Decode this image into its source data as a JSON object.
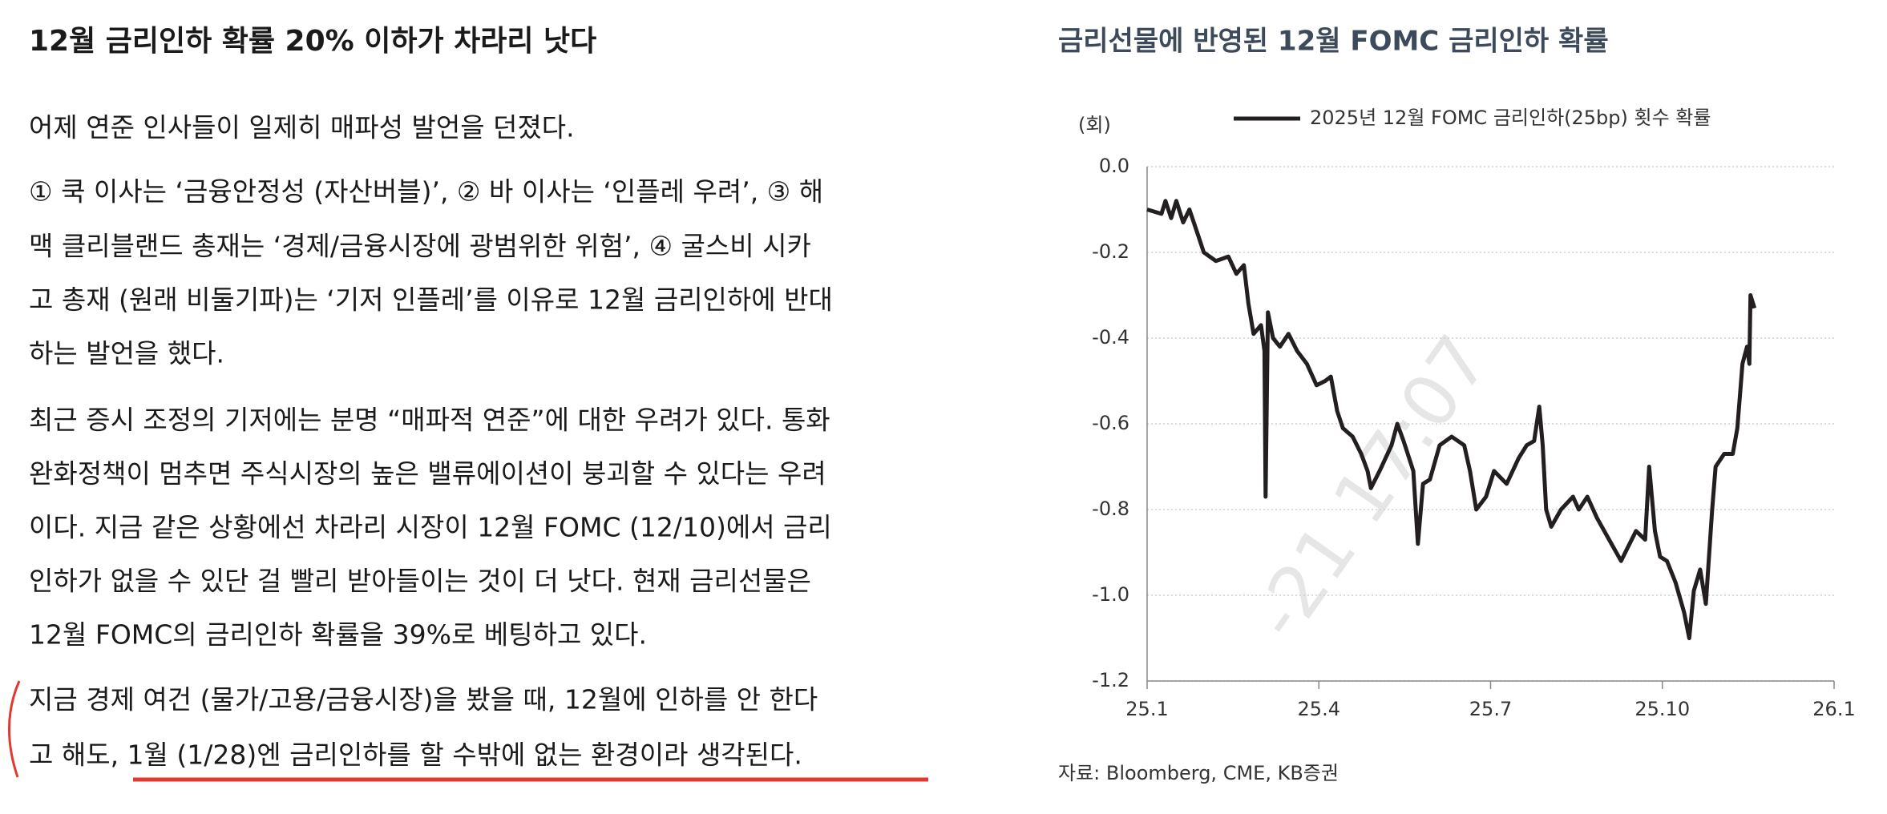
{
  "article": {
    "title": "12월 금리인하 확률 20% 이하가 차라리 낫다",
    "paragraphs": [
      [
        "어제 연준 인사들이 일제히 매파성 발언을 던졌다."
      ],
      [
        "① 쿡 이사는 ‘금융안정성 (자산버블)’, ② 바 이사는 ‘인플레 우려’, ③ 해",
        "맥 클리블랜드 총재는 ‘경제/금융시장에 광범위한 위험’, ④ 굴스비 시카",
        "고 총재 (원래 비둘기파)는 ‘기저 인플레’를 이유로 12월 금리인하에 반대",
        "하는 발언을 했다."
      ],
      [
        "최근 증시 조정의 기저에는 분명 “매파적 연준”에 대한 우려가 있다. 통화",
        "완화정책이 멈추면 주식시장의 높은 밸류에이션이 붕괴할 수 있다는 우려",
        "이다. 지금 같은 상황에선 차라리 시장이 12월 FOMC (12/10)에서 금리",
        "인하가 없을 수 있단 걸 빨리 받아들이는 것이 더 낫다. 현재 금리선물은",
        "12월 FOMC의 금리인하 확률을 39%로 베팅하고 있다."
      ],
      [
        "지금 경제 여건 (물가/고용/금융시장)을 봤을 때, 12월에 인하를 안 한다",
        "고 해도, 1월 (1/28)엔 금리인하를 할 수밖에 없는 환경이라 생각된다."
      ]
    ],
    "watermark": "-21 17:07"
  },
  "chart_data": {
    "type": "line",
    "title": "금리선물에 반영된 12월 FOMC 금리인하 확률",
    "y_unit": "(회)",
    "source": "자료: Bloomberg, CME, KB증권",
    "grid": true,
    "xlim": [
      0,
      12
    ],
    "xticks": [
      {
        "value": 0,
        "label": "25.1"
      },
      {
        "value": 3,
        "label": "25.4"
      },
      {
        "value": 6,
        "label": "25.7"
      },
      {
        "value": 9,
        "label": "25.10"
      },
      {
        "value": 12,
        "label": "26.1"
      }
    ],
    "ylim": [
      -1.2,
      0
    ],
    "yticks": [
      {
        "value": 0,
        "label": "0.0"
      },
      -0.2,
      -0.4,
      -0.6,
      -0.8,
      {
        "value": -1,
        "label": "-1.0"
      },
      -1.2
    ],
    "x": [
      0,
      0.25,
      0.32,
      0.42,
      0.51,
      0.63,
      0.74,
      0.89,
      0.99,
      1.2,
      1.42,
      1.56,
      1.69,
      1.77,
      1.86,
      1.99,
      2.05,
      2.07,
      2.11,
      2.2,
      2.32,
      2.47,
      2.62,
      2.79,
      2.96,
      3.11,
      3.21,
      3.32,
      3.42,
      3.59,
      3.74,
      3.85,
      3.91,
      4.06,
      4.27,
      4.37,
      4.48,
      4.65,
      4.73,
      4.82,
      4.94,
      5.11,
      5.32,
      5.54,
      5.64,
      5.75,
      5.92,
      6.06,
      6.28,
      6.49,
      6.63,
      6.76,
      6.85,
      6.91,
      6.97,
      7.06,
      7.23,
      7.44,
      7.54,
      7.69,
      7.86,
      8.07,
      8.28,
      8.39,
      8.54,
      8.7,
      8.77,
      8.87,
      8.96,
      9.08,
      9.23,
      9.38,
      9.47,
      9.55,
      9.66,
      9.76,
      9.87,
      9.93,
      10.08,
      10.23,
      10.31,
      10.4,
      10.48,
      10.52,
      10.54,
      10.61
    ],
    "series": [
      {
        "name": "2025년 12월 FOMC 금리인하(25bp) 횟수 확률",
        "color": "#231f20",
        "values": [
          -0.1,
          -0.11,
          -0.08,
          -0.12,
          -0.08,
          -0.13,
          -0.1,
          -0.16,
          -0.2,
          -0.22,
          -0.21,
          -0.25,
          -0.23,
          -0.32,
          -0.39,
          -0.37,
          -0.43,
          -0.77,
          -0.34,
          -0.4,
          -0.42,
          -0.39,
          -0.43,
          -0.46,
          -0.51,
          -0.5,
          -0.49,
          -0.57,
          -0.61,
          -0.63,
          -0.67,
          -0.71,
          -0.75,
          -0.71,
          -0.65,
          -0.6,
          -0.64,
          -0.71,
          -0.88,
          -0.74,
          -0.73,
          -0.65,
          -0.63,
          -0.65,
          -0.71,
          -0.8,
          -0.77,
          -0.71,
          -0.74,
          -0.68,
          -0.65,
          -0.64,
          -0.56,
          -0.65,
          -0.8,
          -0.84,
          -0.8,
          -0.77,
          -0.8,
          -0.77,
          -0.82,
          -0.87,
          -0.92,
          -0.89,
          -0.85,
          -0.87,
          -0.7,
          -0.85,
          -0.91,
          -0.92,
          -0.97,
          -1.04,
          -1.1,
          -0.99,
          -0.94,
          -1.02,
          -0.8,
          -0.7,
          -0.67,
          -0.67,
          -0.61,
          -0.46,
          -0.42,
          -0.46,
          -0.3,
          -0.33
        ]
      }
    ]
  }
}
